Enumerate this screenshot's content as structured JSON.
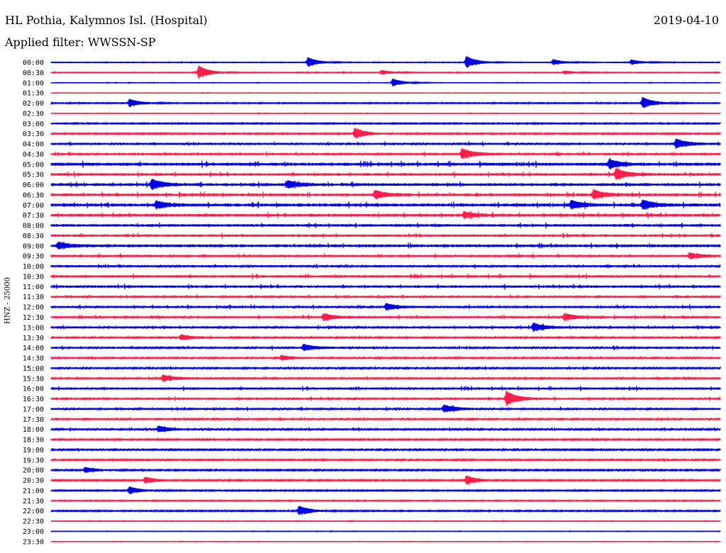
{
  "header": {
    "station": "HL Pothia, Kalymnos Isl. (Hospital)",
    "date": "2019-04-10",
    "filter": "Applied filter: WWSSN-SP"
  },
  "colors": {
    "odd_trace": "#0000e0",
    "even_trace": "#ff1f4a"
  },
  "chart_data": {
    "type": "line",
    "title": "HL Pothia, Kalymnos Isl. (Hospital)",
    "subtitle": "Applied filter: WWSSN-SP",
    "ylabel": "HNZ - 25000",
    "xlabel": "",
    "grid": false,
    "legend": "none",
    "categories": [
      "00:00",
      "00:30",
      "01:00",
      "01:30",
      "02:00",
      "02:30",
      "03:00",
      "03:30",
      "04:00",
      "04:30",
      "05:00",
      "05:30",
      "06:00",
      "06:30",
      "07:00",
      "07:30",
      "08:00",
      "08:30",
      "09:00",
      "09:30",
      "10:00",
      "10:30",
      "11:00",
      "11:30",
      "12:00",
      "12:30",
      "13:00",
      "13:30",
      "14:00",
      "14:30",
      "15:00",
      "15:30",
      "16:00",
      "16:30",
      "17:00",
      "17:30",
      "18:00",
      "18:30",
      "19:00",
      "19:30",
      "20:00",
      "20:30",
      "21:00",
      "21:30",
      "22:00",
      "22:30",
      "23:00",
      "23:30"
    ],
    "series_colors": [
      "#0000e0",
      "#ff1f4a"
    ],
    "noise_level": [
      0.15,
      0.2,
      0.12,
      0.1,
      0.25,
      0.12,
      0.3,
      0.35,
      0.55,
      0.6,
      0.75,
      0.65,
      0.7,
      0.7,
      0.75,
      0.7,
      0.65,
      0.6,
      0.7,
      0.6,
      0.55,
      0.6,
      0.6,
      0.5,
      0.55,
      0.55,
      0.5,
      0.45,
      0.5,
      0.45,
      0.45,
      0.5,
      0.55,
      0.5,
      0.5,
      0.45,
      0.45,
      0.4,
      0.4,
      0.4,
      0.35,
      0.35,
      0.3,
      0.25,
      0.3,
      0.15,
      0.12,
      0.1
    ],
    "events": [
      {
        "row": 0,
        "time_min": 11.5,
        "amplitude": 2.2
      },
      {
        "row": 0,
        "time_min": 18.6,
        "amplitude": 2.8
      },
      {
        "row": 0,
        "time_min": 22.5,
        "amplitude": 1.3
      },
      {
        "row": 0,
        "time_min": 26.0,
        "amplitude": 1.2
      },
      {
        "row": 1,
        "time_min": 6.6,
        "amplitude": 3.0
      },
      {
        "row": 1,
        "time_min": 14.8,
        "amplitude": 1.0
      },
      {
        "row": 1,
        "time_min": 23.0,
        "amplitude": 0.8
      },
      {
        "row": 2,
        "time_min": 15.3,
        "amplitude": 1.8
      },
      {
        "row": 4,
        "time_min": 3.5,
        "amplitude": 1.8
      },
      {
        "row": 4,
        "time_min": 26.5,
        "amplitude": 2.6
      },
      {
        "row": 7,
        "time_min": 13.6,
        "amplitude": 2.4
      },
      {
        "row": 8,
        "time_min": 28.0,
        "amplitude": 2.0
      },
      {
        "row": 9,
        "time_min": 18.4,
        "amplitude": 2.2
      },
      {
        "row": 10,
        "time_min": 25.0,
        "amplitude": 1.8
      },
      {
        "row": 11,
        "time_min": 25.3,
        "amplitude": 2.4
      },
      {
        "row": 12,
        "time_min": 4.5,
        "amplitude": 2.2
      },
      {
        "row": 12,
        "time_min": 10.6,
        "amplitude": 1.6
      },
      {
        "row": 13,
        "time_min": 14.5,
        "amplitude": 1.8
      },
      {
        "row": 13,
        "time_min": 24.3,
        "amplitude": 2.0
      },
      {
        "row": 14,
        "time_min": 4.7,
        "amplitude": 1.6
      },
      {
        "row": 14,
        "time_min": 23.3,
        "amplitude": 1.8
      },
      {
        "row": 14,
        "time_min": 26.5,
        "amplitude": 2.0
      },
      {
        "row": 15,
        "time_min": 18.5,
        "amplitude": 1.4
      },
      {
        "row": 18,
        "time_min": 0.3,
        "amplitude": 1.4
      },
      {
        "row": 19,
        "time_min": 28.6,
        "amplitude": 1.2
      },
      {
        "row": 24,
        "time_min": 15.0,
        "amplitude": 1.4
      },
      {
        "row": 25,
        "time_min": 12.2,
        "amplitude": 1.4
      },
      {
        "row": 25,
        "time_min": 23.0,
        "amplitude": 1.4
      },
      {
        "row": 26,
        "time_min": 21.6,
        "amplitude": 1.8
      },
      {
        "row": 27,
        "time_min": 5.8,
        "amplitude": 1.2
      },
      {
        "row": 28,
        "time_min": 11.3,
        "amplitude": 1.4
      },
      {
        "row": 29,
        "time_min": 10.3,
        "amplitude": 1.0
      },
      {
        "row": 31,
        "time_min": 5.0,
        "amplitude": 1.4
      },
      {
        "row": 33,
        "time_min": 20.4,
        "amplitude": 3.2
      },
      {
        "row": 34,
        "time_min": 17.6,
        "amplitude": 1.6
      },
      {
        "row": 36,
        "time_min": 4.8,
        "amplitude": 1.4
      },
      {
        "row": 40,
        "time_min": 1.5,
        "amplitude": 1.2
      },
      {
        "row": 41,
        "time_min": 4.2,
        "amplitude": 1.4
      },
      {
        "row": 41,
        "time_min": 18.6,
        "amplitude": 2.0
      },
      {
        "row": 42,
        "time_min": 3.5,
        "amplitude": 1.6
      },
      {
        "row": 44,
        "time_min": 11.1,
        "amplitude": 2.2
      }
    ]
  }
}
